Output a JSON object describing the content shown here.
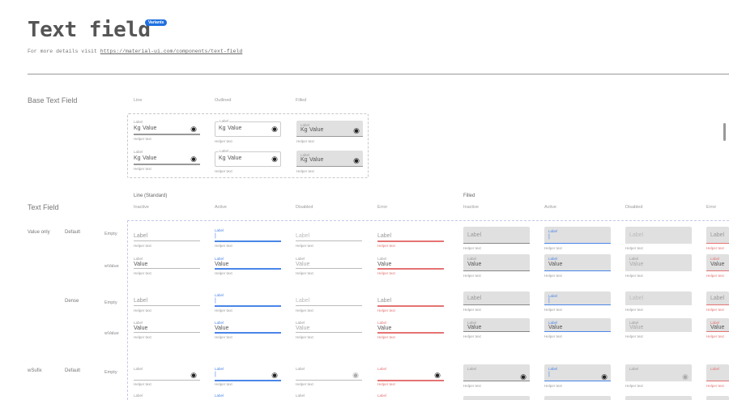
{
  "header": {
    "title": "Text field",
    "badge": "Variants",
    "details_prefix": "For more details visit",
    "details_link": "https://material-ui.com/components/text-field"
  },
  "base": {
    "title": "Base Text Field",
    "columns": [
      "Line",
      "Outlined",
      "Filled"
    ],
    "label": "Label",
    "prefix": "Kg",
    "value": "Value",
    "helper": "Helper text",
    "icon": "eye-icon"
  },
  "text_field": {
    "title": "Text Field",
    "groups": [
      {
        "title": "Line (Standard)",
        "states": [
          "Inactive",
          "Active",
          "Disabled",
          "Error"
        ]
      },
      {
        "title": "Filled",
        "states": [
          "Inactive",
          "Active",
          "Disabled",
          "Error"
        ]
      }
    ],
    "row_labels": {
      "type": [
        "Value only",
        "wSufix"
      ],
      "density": [
        "Default",
        "Dense",
        "Default"
      ],
      "content": [
        "Empty",
        "wValue",
        "Empty",
        "wValue",
        "Empty"
      ]
    },
    "label": "Label",
    "value": "Value",
    "cursor": "|",
    "helper": "Helper text"
  },
  "colors": {
    "active": "#4a86e8",
    "error": "#e57373",
    "filled_bg": "#e0e0e0",
    "badge": "#1e6fe0"
  }
}
